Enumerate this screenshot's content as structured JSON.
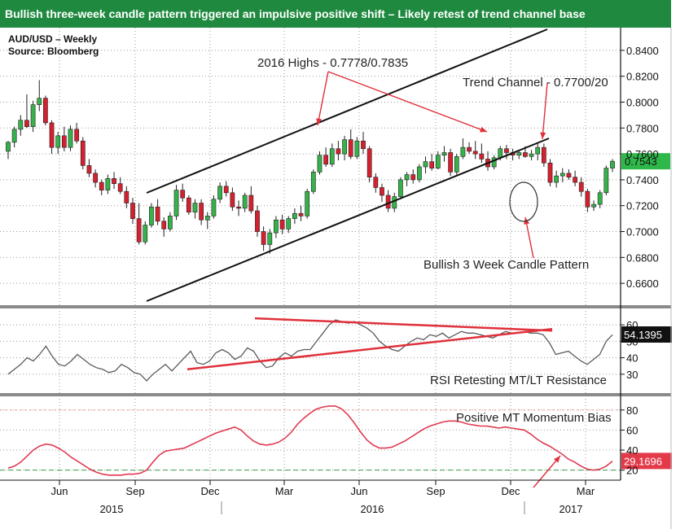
{
  "banner": {
    "text": "Bullish three-week candle pattern triggered an impulsive positive shift – Likely retest of trend channel base"
  },
  "colors": {
    "banner": "#1f8a3f",
    "up": "#36b24a",
    "down": "#d6202f",
    "trend": "#111111",
    "annot": "#e0303a",
    "rsi": "#5a5a5a",
    "mom": "#e03a52",
    "dash_red": "#f0a0a0",
    "dash_green": "#3aa04a",
    "badge_green": "#2fb84a"
  },
  "chart_data": [
    {
      "type": "candlestick",
      "title": "AUD/USD – Weekly",
      "source": "Source: Bloomberg",
      "ylim": [
        0.645,
        0.855
      ],
      "yticks": [
        "0.8400",
        "0.8200",
        "0.8000",
        "0.7800",
        "0.7600",
        "0.7400",
        "0.7200",
        "0.7000",
        "0.6800",
        "0.6600"
      ],
      "last_value": "0.7543",
      "annotations": [
        "2016 Highs - 0.7778/0.7835",
        "Trend Channel - 0.7700/20",
        "Bullish 3 Week Candle Pattern"
      ],
      "candles": [
        {
          "o": 0.762,
          "h": 0.77,
          "l": 0.756,
          "c": 0.769
        },
        {
          "o": 0.769,
          "h": 0.781,
          "l": 0.765,
          "c": 0.779
        },
        {
          "o": 0.779,
          "h": 0.79,
          "l": 0.774,
          "c": 0.786
        },
        {
          "o": 0.786,
          "h": 0.806,
          "l": 0.78,
          "c": 0.781
        },
        {
          "o": 0.781,
          "h": 0.801,
          "l": 0.777,
          "c": 0.798
        },
        {
          "o": 0.798,
          "h": 0.817,
          "l": 0.793,
          "c": 0.803
        },
        {
          "o": 0.803,
          "h": 0.805,
          "l": 0.782,
          "c": 0.784
        },
        {
          "o": 0.784,
          "h": 0.786,
          "l": 0.76,
          "c": 0.765
        },
        {
          "o": 0.765,
          "h": 0.777,
          "l": 0.76,
          "c": 0.774
        },
        {
          "o": 0.774,
          "h": 0.781,
          "l": 0.762,
          "c": 0.765
        },
        {
          "o": 0.765,
          "h": 0.782,
          "l": 0.762,
          "c": 0.779
        },
        {
          "o": 0.779,
          "h": 0.784,
          "l": 0.768,
          "c": 0.77
        },
        {
          "o": 0.77,
          "h": 0.773,
          "l": 0.748,
          "c": 0.751
        },
        {
          "o": 0.751,
          "h": 0.756,
          "l": 0.742,
          "c": 0.745
        },
        {
          "o": 0.745,
          "h": 0.748,
          "l": 0.734,
          "c": 0.738
        },
        {
          "o": 0.738,
          "h": 0.74,
          "l": 0.728,
          "c": 0.732
        },
        {
          "o": 0.732,
          "h": 0.744,
          "l": 0.729,
          "c": 0.741
        },
        {
          "o": 0.741,
          "h": 0.746,
          "l": 0.733,
          "c": 0.737
        },
        {
          "o": 0.737,
          "h": 0.742,
          "l": 0.729,
          "c": 0.731
        },
        {
          "o": 0.731,
          "h": 0.735,
          "l": 0.718,
          "c": 0.722
        },
        {
          "o": 0.722,
          "h": 0.726,
          "l": 0.706,
          "c": 0.71
        },
        {
          "o": 0.71,
          "h": 0.722,
          "l": 0.69,
          "c": 0.692
        },
        {
          "o": 0.692,
          "h": 0.708,
          "l": 0.69,
          "c": 0.705
        },
        {
          "o": 0.705,
          "h": 0.722,
          "l": 0.703,
          "c": 0.719
        },
        {
          "o": 0.719,
          "h": 0.725,
          "l": 0.705,
          "c": 0.708
        },
        {
          "o": 0.708,
          "h": 0.711,
          "l": 0.696,
          "c": 0.702
        },
        {
          "o": 0.702,
          "h": 0.715,
          "l": 0.7,
          "c": 0.712
        },
        {
          "o": 0.712,
          "h": 0.736,
          "l": 0.709,
          "c": 0.732
        },
        {
          "o": 0.732,
          "h": 0.737,
          "l": 0.723,
          "c": 0.726
        },
        {
          "o": 0.726,
          "h": 0.728,
          "l": 0.713,
          "c": 0.715
        },
        {
          "o": 0.715,
          "h": 0.725,
          "l": 0.71,
          "c": 0.722
        },
        {
          "o": 0.722,
          "h": 0.725,
          "l": 0.705,
          "c": 0.709
        },
        {
          "o": 0.709,
          "h": 0.715,
          "l": 0.702,
          "c": 0.712
        },
        {
          "o": 0.712,
          "h": 0.728,
          "l": 0.71,
          "c": 0.725
        },
        {
          "o": 0.725,
          "h": 0.738,
          "l": 0.722,
          "c": 0.735
        },
        {
          "o": 0.735,
          "h": 0.739,
          "l": 0.727,
          "c": 0.73
        },
        {
          "o": 0.73,
          "h": 0.734,
          "l": 0.716,
          "c": 0.719
        },
        {
          "o": 0.719,
          "h": 0.724,
          "l": 0.712,
          "c": 0.718
        },
        {
          "o": 0.718,
          "h": 0.73,
          "l": 0.715,
          "c": 0.728
        },
        {
          "o": 0.728,
          "h": 0.735,
          "l": 0.714,
          "c": 0.716
        },
        {
          "o": 0.716,
          "h": 0.72,
          "l": 0.696,
          "c": 0.7
        },
        {
          "o": 0.7,
          "h": 0.704,
          "l": 0.685,
          "c": 0.69
        },
        {
          "o": 0.69,
          "h": 0.702,
          "l": 0.683,
          "c": 0.699
        },
        {
          "o": 0.699,
          "h": 0.712,
          "l": 0.695,
          "c": 0.709
        },
        {
          "o": 0.709,
          "h": 0.713,
          "l": 0.698,
          "c": 0.702
        },
        {
          "o": 0.702,
          "h": 0.712,
          "l": 0.699,
          "c": 0.71
        },
        {
          "o": 0.71,
          "h": 0.718,
          "l": 0.706,
          "c": 0.714
        },
        {
          "o": 0.714,
          "h": 0.72,
          "l": 0.708,
          "c": 0.712
        },
        {
          "o": 0.712,
          "h": 0.733,
          "l": 0.71,
          "c": 0.731
        },
        {
          "o": 0.731,
          "h": 0.748,
          "l": 0.729,
          "c": 0.746
        },
        {
          "o": 0.746,
          "h": 0.762,
          "l": 0.744,
          "c": 0.759
        },
        {
          "o": 0.759,
          "h": 0.765,
          "l": 0.75,
          "c": 0.752
        },
        {
          "o": 0.752,
          "h": 0.768,
          "l": 0.75,
          "c": 0.764
        },
        {
          "o": 0.764,
          "h": 0.77,
          "l": 0.755,
          "c": 0.76
        },
        {
          "o": 0.76,
          "h": 0.774,
          "l": 0.755,
          "c": 0.771
        },
        {
          "o": 0.771,
          "h": 0.779,
          "l": 0.756,
          "c": 0.758
        },
        {
          "o": 0.758,
          "h": 0.773,
          "l": 0.756,
          "c": 0.77
        },
        {
          "o": 0.77,
          "h": 0.777,
          "l": 0.76,
          "c": 0.764
        },
        {
          "o": 0.764,
          "h": 0.766,
          "l": 0.738,
          "c": 0.742
        },
        {
          "o": 0.742,
          "h": 0.745,
          "l": 0.73,
          "c": 0.734
        },
        {
          "o": 0.734,
          "h": 0.737,
          "l": 0.723,
          "c": 0.728
        },
        {
          "o": 0.728,
          "h": 0.732,
          "l": 0.715,
          "c": 0.718
        },
        {
          "o": 0.718,
          "h": 0.73,
          "l": 0.715,
          "c": 0.727
        },
        {
          "o": 0.727,
          "h": 0.742,
          "l": 0.725,
          "c": 0.74
        },
        {
          "o": 0.74,
          "h": 0.746,
          "l": 0.735,
          "c": 0.744
        },
        {
          "o": 0.744,
          "h": 0.748,
          "l": 0.737,
          "c": 0.74
        },
        {
          "o": 0.74,
          "h": 0.752,
          "l": 0.738,
          "c": 0.75
        },
        {
          "o": 0.75,
          "h": 0.758,
          "l": 0.745,
          "c": 0.754
        },
        {
          "o": 0.754,
          "h": 0.76,
          "l": 0.747,
          "c": 0.749
        },
        {
          "o": 0.749,
          "h": 0.762,
          "l": 0.748,
          "c": 0.759
        },
        {
          "o": 0.759,
          "h": 0.766,
          "l": 0.754,
          "c": 0.761
        },
        {
          "o": 0.761,
          "h": 0.764,
          "l": 0.743,
          "c": 0.746
        },
        {
          "o": 0.746,
          "h": 0.76,
          "l": 0.744,
          "c": 0.758
        },
        {
          "o": 0.758,
          "h": 0.772,
          "l": 0.756,
          "c": 0.765
        },
        {
          "o": 0.765,
          "h": 0.769,
          "l": 0.76,
          "c": 0.762
        },
        {
          "o": 0.762,
          "h": 0.77,
          "l": 0.756,
          "c": 0.76
        },
        {
          "o": 0.76,
          "h": 0.768,
          "l": 0.753,
          "c": 0.756
        },
        {
          "o": 0.756,
          "h": 0.762,
          "l": 0.747,
          "c": 0.75
        },
        {
          "o": 0.75,
          "h": 0.759,
          "l": 0.748,
          "c": 0.757
        },
        {
          "o": 0.757,
          "h": 0.766,
          "l": 0.755,
          "c": 0.764
        },
        {
          "o": 0.764,
          "h": 0.767,
          "l": 0.756,
          "c": 0.761
        },
        {
          "o": 0.761,
          "h": 0.764,
          "l": 0.755,
          "c": 0.759
        },
        {
          "o": 0.759,
          "h": 0.763,
          "l": 0.756,
          "c": 0.761
        },
        {
          "o": 0.761,
          "h": 0.766,
          "l": 0.757,
          "c": 0.758
        },
        {
          "o": 0.758,
          "h": 0.763,
          "l": 0.755,
          "c": 0.76
        },
        {
          "o": 0.76,
          "h": 0.768,
          "l": 0.755,
          "c": 0.765
        },
        {
          "o": 0.765,
          "h": 0.768,
          "l": 0.75,
          "c": 0.753
        },
        {
          "o": 0.753,
          "h": 0.756,
          "l": 0.735,
          "c": 0.738
        },
        {
          "o": 0.738,
          "h": 0.747,
          "l": 0.734,
          "c": 0.743
        },
        {
          "o": 0.743,
          "h": 0.749,
          "l": 0.738,
          "c": 0.745
        },
        {
          "o": 0.745,
          "h": 0.748,
          "l": 0.74,
          "c": 0.742
        },
        {
          "o": 0.742,
          "h": 0.747,
          "l": 0.735,
          "c": 0.738
        },
        {
          "o": 0.738,
          "h": 0.742,
          "l": 0.727,
          "c": 0.731
        },
        {
          "o": 0.731,
          "h": 0.733,
          "l": 0.715,
          "c": 0.719
        },
        {
          "o": 0.719,
          "h": 0.724,
          "l": 0.716,
          "c": 0.721
        },
        {
          "o": 0.721,
          "h": 0.732,
          "l": 0.718,
          "c": 0.73
        },
        {
          "o": 0.73,
          "h": 0.751,
          "l": 0.728,
          "c": 0.749
        },
        {
          "o": 0.749,
          "h": 0.756,
          "l": 0.746,
          "c": 0.7543
        }
      ]
    },
    {
      "type": "line",
      "series": [
        {
          "name": "RSI"
        }
      ],
      "ylim": [
        20,
        68
      ],
      "yticks": [
        "60",
        "50",
        "40",
        "30"
      ],
      "last_value": "54.1395",
      "annotation": "RSI Retesting MT/LT Resistance",
      "values": [
        30,
        33,
        36,
        40,
        38,
        42,
        47,
        41,
        36,
        35,
        38,
        42,
        39,
        36,
        34,
        33,
        31,
        32,
        36,
        34,
        31,
        30,
        26,
        30,
        33,
        36,
        32,
        36,
        40,
        44,
        37,
        36,
        38,
        43,
        45,
        43,
        39,
        41,
        46,
        44,
        38,
        34,
        35,
        40,
        43,
        41,
        44,
        45,
        45,
        50,
        55,
        60,
        63,
        62,
        61,
        62,
        60,
        58,
        55,
        50,
        47,
        45,
        44,
        47,
        50,
        52,
        51,
        54,
        53,
        55,
        52,
        54,
        56,
        55,
        55,
        54,
        53,
        52,
        54,
        56,
        55,
        55,
        56,
        55,
        55,
        54,
        49,
        42,
        43,
        44,
        41,
        38,
        36,
        39,
        42,
        50,
        54
      ]
    },
    {
      "type": "line",
      "series": [
        {
          "name": "Momentum"
        }
      ],
      "ylim": [
        10,
        92
      ],
      "yticks": [
        "80",
        "60",
        "40",
        "20"
      ],
      "last_value": "29.1696",
      "annotation": "Positive MT Momentum Bias",
      "values": [
        22,
        24,
        28,
        34,
        40,
        44,
        46,
        45,
        42,
        38,
        33,
        29,
        25,
        21,
        18,
        16,
        15,
        15,
        15,
        16,
        16,
        17,
        20,
        28,
        35,
        39,
        40,
        41,
        42,
        45,
        48,
        51,
        54,
        57,
        59,
        61,
        63,
        60,
        54,
        49,
        46,
        45,
        46,
        48,
        52,
        58,
        66,
        72,
        77,
        81,
        83,
        84,
        84,
        81,
        75,
        67,
        58,
        50,
        45,
        42,
        42,
        43,
        46,
        49,
        53,
        57,
        61,
        64,
        66,
        68,
        69,
        69,
        68,
        66,
        65,
        64,
        64,
        63,
        62,
        63,
        62,
        61,
        60,
        56,
        51,
        47,
        44,
        40,
        36,
        31,
        28,
        24,
        21,
        20,
        21,
        24,
        29
      ]
    }
  ],
  "x_axis": {
    "months": [
      "Jun",
      "Sep",
      "Dec",
      "Mar",
      "Jun",
      "Sep",
      "Dec",
      "Mar"
    ],
    "years": [
      "2015",
      "2016",
      "2017"
    ]
  }
}
